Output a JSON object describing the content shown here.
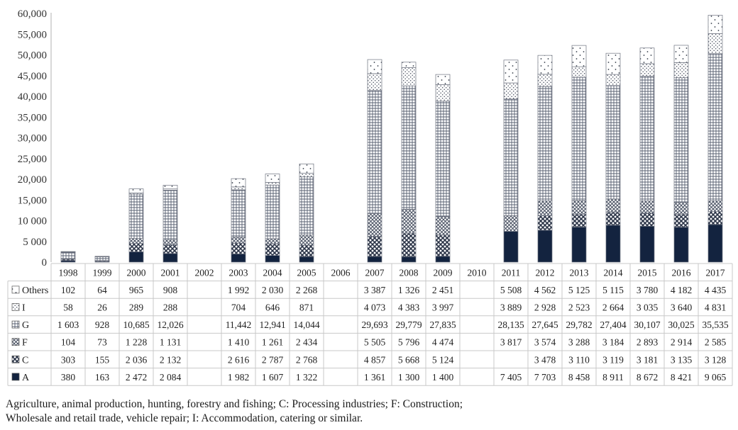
{
  "chart_data": {
    "type": "bar",
    "stacked": true,
    "categories": [
      "1998",
      "1999",
      "2000",
      "2001",
      "2002",
      "2003",
      "2004",
      "2005",
      "2006",
      "2007",
      "2008",
      "2009",
      "2010",
      "2011",
      "2012",
      "2013",
      "2014",
      "2015",
      "2016",
      "2017"
    ],
    "y_ticks": [
      "0",
      "5 000",
      "10 000",
      "15,000",
      "20,000",
      "25,000",
      "30,000",
      "35,000",
      "40,000",
      "45,000",
      "50,000",
      "55,000",
      "60,000"
    ],
    "ylim": [
      0,
      60000
    ],
    "grid": false,
    "series": [
      {
        "name": "A",
        "values": [
          380,
          163,
          2472,
          2084,
          null,
          1982,
          1607,
          1322,
          null,
          1361,
          1300,
          1400,
          null,
          7405,
          7703,
          8458,
          8911,
          8672,
          8421,
          9065
        ],
        "labels": [
          "380",
          "163",
          "2 472",
          "2 084",
          "",
          "1 982",
          "1 607",
          "1 322",
          "",
          "1 361",
          "1 300",
          "1 400",
          "",
          "7 405",
          "7 703",
          "8 458",
          "8 911",
          "8 672",
          "8 421",
          "9 065"
        ]
      },
      {
        "name": "C",
        "values": [
          303,
          155,
          2036,
          2132,
          null,
          2616,
          2787,
          2768,
          null,
          4857,
          5668,
          5124,
          null,
          null,
          3478,
          3110,
          3119,
          3181,
          3135,
          3128
        ],
        "labels": [
          "303",
          "155",
          "2 036",
          "2 132",
          "",
          "2 616",
          "2 787",
          "2 768",
          "",
          "4 857",
          "5 668",
          "5 124",
          "",
          "",
          "3 478",
          "3 110",
          "3 119",
          "3 181",
          "3 135",
          "3 128"
        ]
      },
      {
        "name": "F",
        "values": [
          104,
          73,
          1228,
          1131,
          null,
          1410,
          1261,
          2434,
          null,
          5505,
          5796,
          4474,
          null,
          3817,
          3574,
          3288,
          3184,
          2893,
          2914,
          2585
        ],
        "labels": [
          "104",
          "73",
          "1 228",
          "1 131",
          "",
          "1 410",
          "1 261",
          "2 434",
          "",
          "5 505",
          "5 796",
          "4 474",
          "",
          "3 817",
          "3 574",
          "3 288",
          "3 184",
          "2 893",
          "2 914",
          "2 585"
        ]
      },
      {
        "name": "G",
        "values": [
          1603,
          928,
          10685,
          12026,
          null,
          11442,
          12941,
          14044,
          null,
          29693,
          29779,
          27835,
          null,
          28135,
          27645,
          29782,
          27404,
          30107,
          30025,
          35535
        ],
        "labels": [
          "1 603",
          "928",
          "10,685",
          "12,026",
          "",
          "11,442",
          "12,941",
          "14,044",
          "",
          "29,693",
          "29,779",
          "27,835",
          "",
          "28,135",
          "27,645",
          "29,782",
          "27,404",
          "30,107",
          "30,025",
          "35,535"
        ]
      },
      {
        "name": "I",
        "values": [
          58,
          26,
          289,
          288,
          null,
          704,
          646,
          871,
          null,
          4073,
          4383,
          3997,
          null,
          3889,
          2928,
          2523,
          2664,
          3035,
          3640,
          4831
        ],
        "labels": [
          "58",
          "26",
          "289",
          "288",
          "",
          "704",
          "646",
          "871",
          "",
          "4 073",
          "4 383",
          "3 997",
          "",
          "3 889",
          "2 928",
          "2 523",
          "2 664",
          "3 035",
          "3 640",
          "4 831"
        ]
      },
      {
        "name": "Others",
        "values": [
          102,
          64,
          965,
          908,
          null,
          1992,
          2030,
          2268,
          null,
          3387,
          1326,
          2451,
          null,
          5508,
          4562,
          5125,
          5115,
          3780,
          4182,
          4435
        ],
        "labels": [
          "102",
          "64",
          "965",
          "908",
          "",
          "1 992",
          "2 030",
          "2 268",
          "",
          "3 387",
          "1 326",
          "2 451",
          "",
          "5 508",
          "4 562",
          "5 125",
          "5 115",
          "3 780",
          "4 182",
          "4 435"
        ]
      }
    ],
    "table_row_order": [
      "Others",
      "I",
      "G",
      "F",
      "C",
      "A"
    ],
    "colors": {
      "A": "#13233f",
      "C": "#4a5060",
      "F": "#6c7280",
      "G": "#7d828e",
      "I": "#9aa0aa",
      "Others": "#9a9ea6",
      "axis": "#b0b0b0",
      "grid_line": "#c8c8c8"
    }
  },
  "caption": {
    "line1": "Agriculture, animal production, hunting, forestry and fishing; C: Processing industries; F: Construction;",
    "line2": "Wholesale and retail trade, vehicle repair; I: Accommodation, catering or similar."
  }
}
